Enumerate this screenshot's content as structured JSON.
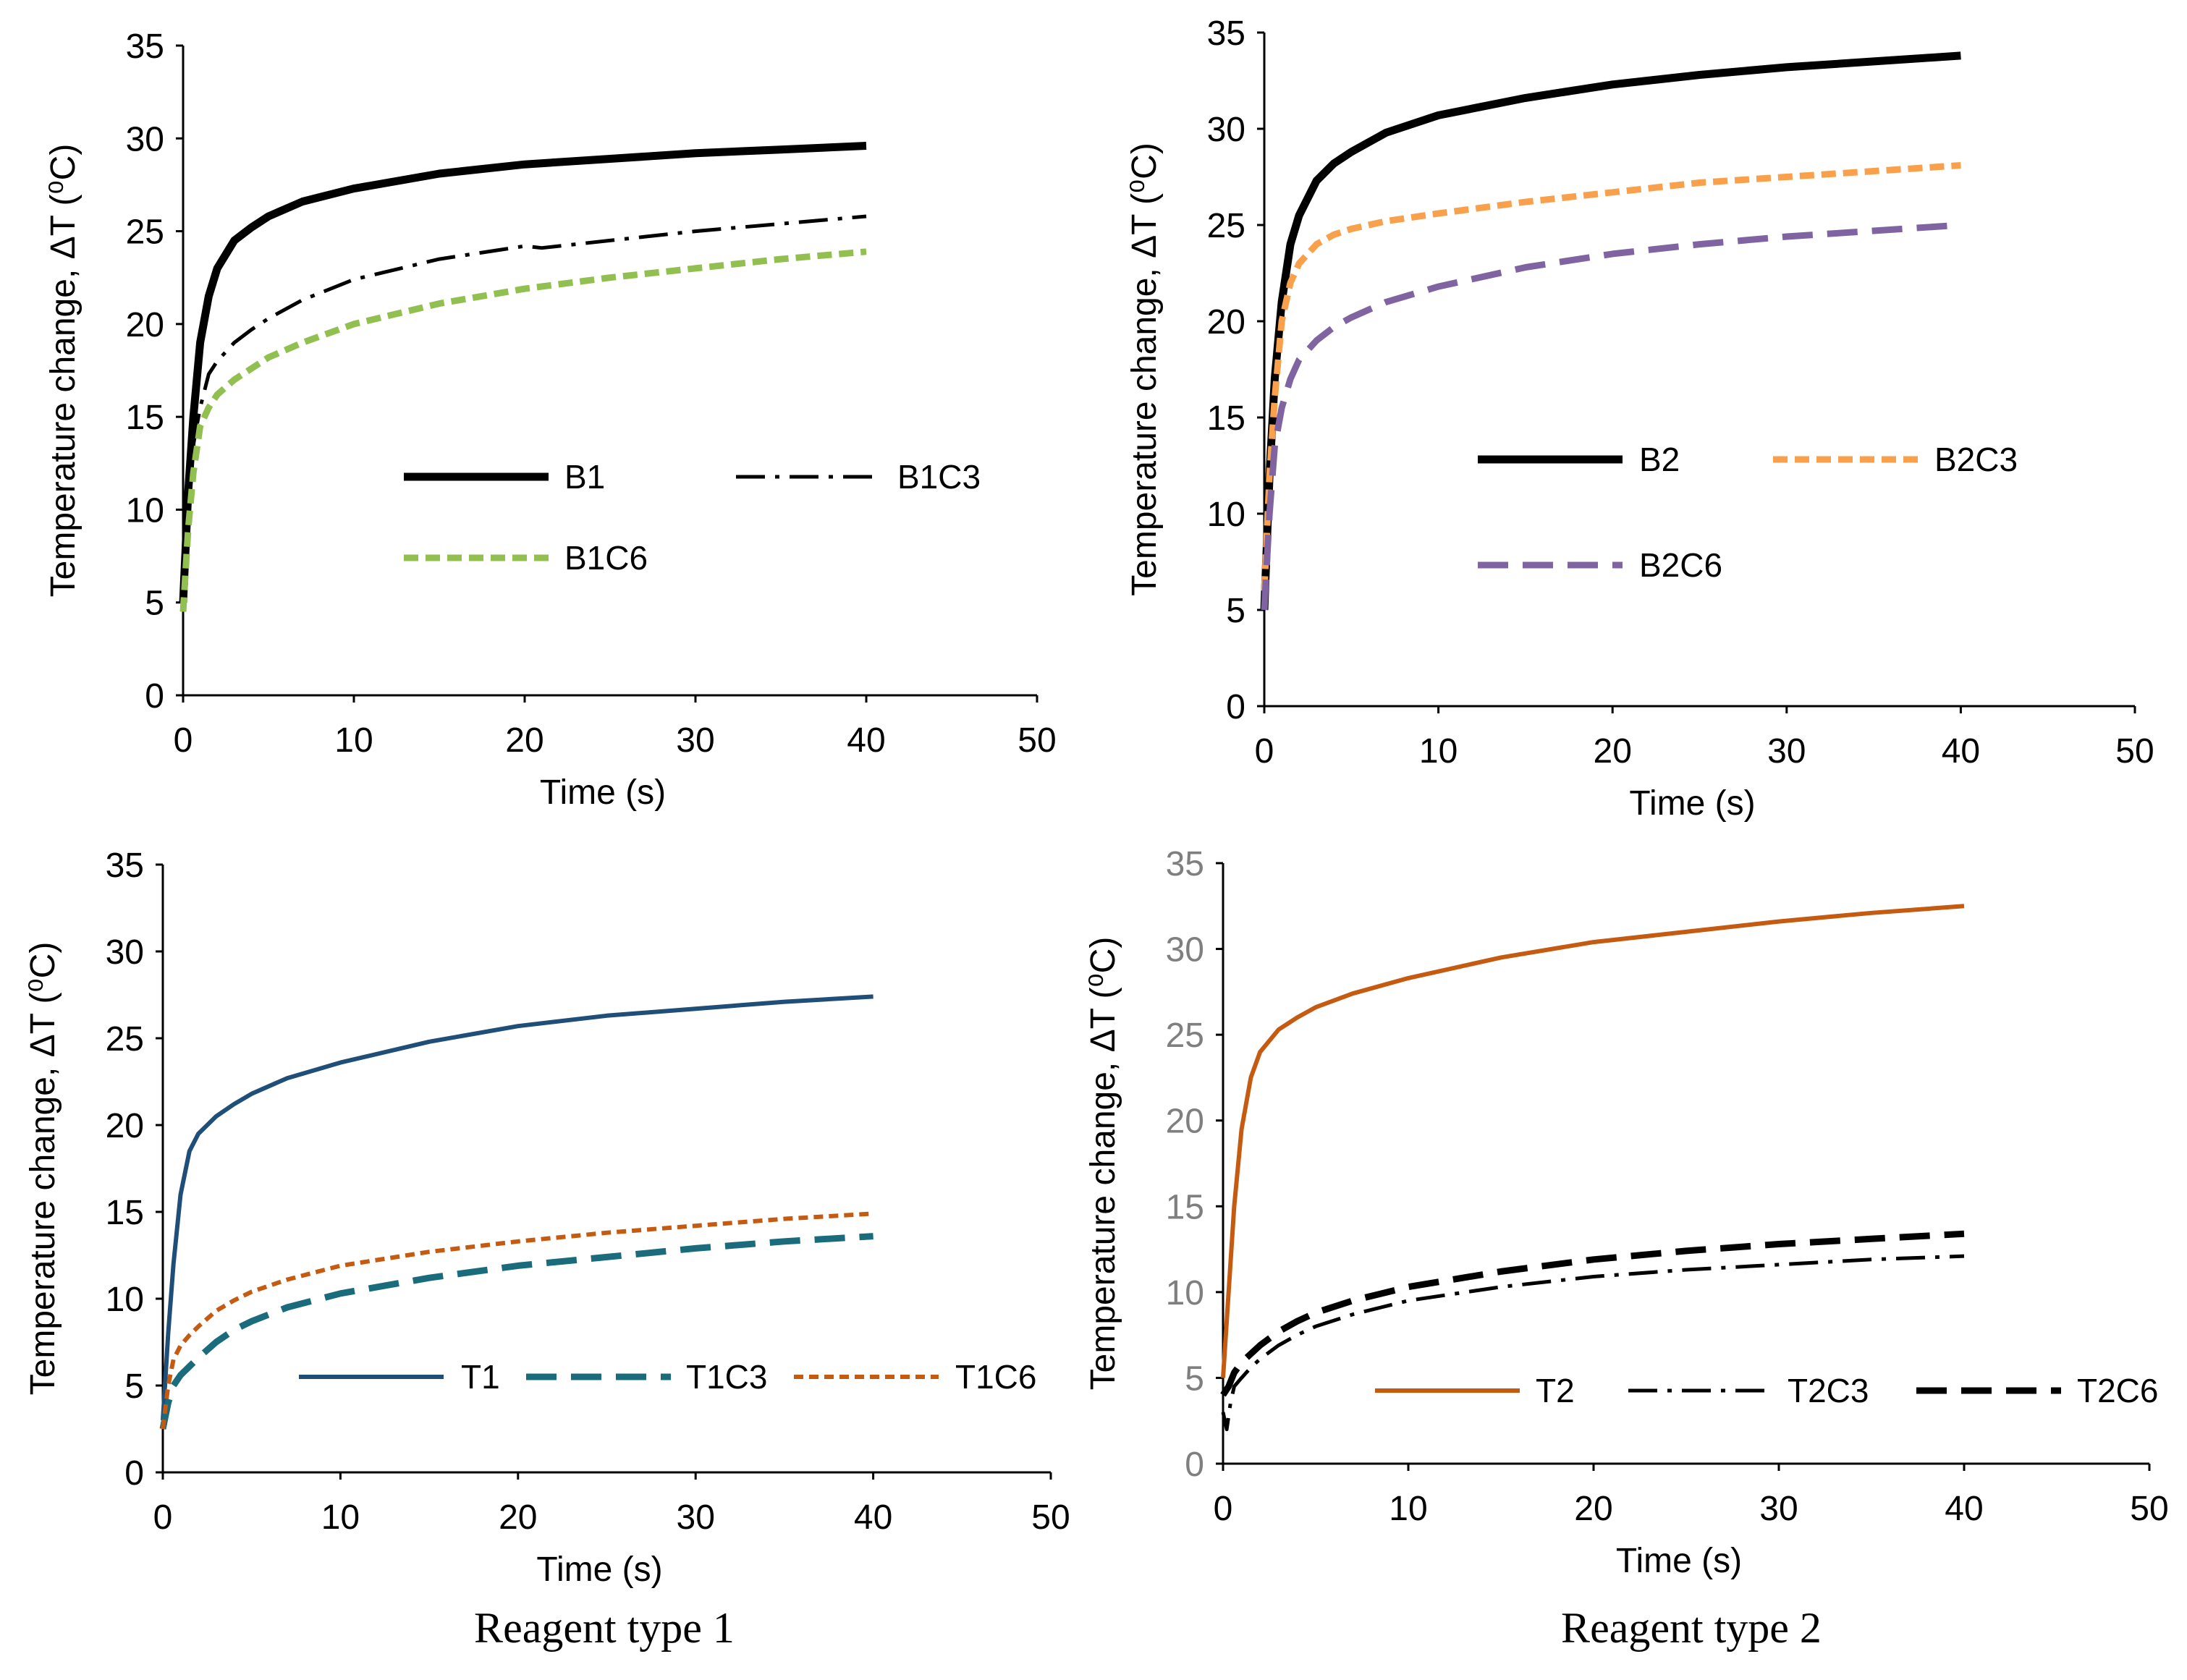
{
  "captions": [
    "Reagent type 1",
    "Reagent type 2"
  ],
  "chart_data": [
    {
      "type": "line",
      "id": "B1",
      "xlabel": "Time (s)",
      "ylabel": "Temperature change, ΔT",
      "ylabel_unit": "(⁰C)",
      "xlim": [
        0,
        50
      ],
      "ylim": [
        0,
        35
      ],
      "xticks": [
        0,
        10,
        20,
        30,
        40,
        50
      ],
      "yticks": [
        0,
        5,
        10,
        15,
        20,
        25,
        30,
        35
      ],
      "legend_position": "middle-right",
      "series": [
        {
          "name": "B1",
          "color": "#000000",
          "style": "solid-thick",
          "x": [
            0,
            0.3,
            0.6,
            1,
            1.5,
            2,
            3,
            4,
            5,
            7,
            10,
            15,
            20,
            25,
            30,
            35,
            40
          ],
          "y": [
            5,
            11,
            15,
            19,
            21.5,
            23,
            24.5,
            25.2,
            25.8,
            26.6,
            27.3,
            28.1,
            28.6,
            28.9,
            29.2,
            29.4,
            29.6
          ]
        },
        {
          "name": "B1C3",
          "color": "#000000",
          "style": "dash-dot",
          "x": [
            0,
            0.3,
            0.6,
            1,
            1.5,
            2,
            3,
            4,
            5,
            7,
            10,
            15,
            20,
            21,
            25,
            30,
            35,
            40
          ],
          "y": [
            5,
            10,
            13.5,
            15.5,
            17.3,
            18,
            19,
            19.7,
            20.3,
            21.3,
            22.4,
            23.5,
            24.2,
            24.1,
            24.5,
            25,
            25.4,
            25.8
          ]
        },
        {
          "name": "B1C6",
          "color": "#92c050",
          "style": "dash-small",
          "x": [
            0,
            0.3,
            0.6,
            1,
            1.5,
            2,
            3,
            4,
            5,
            7,
            10,
            15,
            20,
            25,
            30,
            35,
            40
          ],
          "y": [
            4.5,
            9,
            12,
            14.5,
            15.5,
            16.2,
            17,
            17.6,
            18.2,
            19,
            20,
            21.1,
            21.9,
            22.5,
            23,
            23.5,
            23.9
          ]
        }
      ]
    },
    {
      "type": "line",
      "id": "B2",
      "xlabel": "Time (s)",
      "ylabel": "Temperature change, ΔT",
      "ylabel_unit": "(⁰C)",
      "xlim": [
        0,
        50
      ],
      "ylim": [
        0,
        35
      ],
      "xticks": [
        0,
        10,
        20,
        30,
        40,
        50
      ],
      "yticks": [
        0,
        5,
        10,
        15,
        20,
        25,
        30,
        35
      ],
      "legend_position": "middle-right",
      "series": [
        {
          "name": "B2",
          "color": "#000000",
          "style": "solid-thick",
          "x": [
            0,
            0.3,
            0.6,
            1,
            1.5,
            2,
            3,
            4,
            5,
            7,
            10,
            15,
            20,
            25,
            30,
            35,
            40
          ],
          "y": [
            5,
            12,
            17,
            21,
            24,
            25.5,
            27.3,
            28.2,
            28.8,
            29.8,
            30.7,
            31.6,
            32.3,
            32.8,
            33.2,
            33.5,
            33.8
          ]
        },
        {
          "name": "B2C3",
          "color": "#f8a04c",
          "style": "dash-small",
          "x": [
            0,
            0.3,
            0.6,
            1,
            1.5,
            2,
            3,
            4,
            5,
            7,
            10,
            15,
            20,
            25,
            30,
            35,
            40
          ],
          "y": [
            6,
            12,
            16,
            20,
            22,
            23,
            24,
            24.5,
            24.8,
            25.2,
            25.6,
            26.2,
            26.7,
            27.2,
            27.5,
            27.8,
            28.1
          ]
        },
        {
          "name": "B2C6",
          "color": "#8064a2",
          "style": "dash-long",
          "x": [
            0,
            0.3,
            0.6,
            1,
            1.5,
            2,
            3,
            4,
            5,
            7,
            10,
            15,
            20,
            25,
            30,
            35,
            40
          ],
          "y": [
            5,
            10,
            13.5,
            15.5,
            17,
            18,
            19,
            19.7,
            20.2,
            21,
            21.8,
            22.8,
            23.5,
            24,
            24.4,
            24.7,
            25
          ]
        }
      ]
    },
    {
      "type": "line",
      "id": "T1",
      "xlabel": "Time (s)",
      "ylabel": "Temperature change, ΔT",
      "ylabel_unit": "(⁰C)",
      "xlim": [
        0,
        50
      ],
      "ylim": [
        0,
        35
      ],
      "xticks": [
        0,
        10,
        20,
        30,
        40,
        50
      ],
      "yticks": [
        0,
        5,
        10,
        15,
        20,
        25,
        30,
        35
      ],
      "legend_position": "bottom",
      "series": [
        {
          "name": "T1",
          "color": "#1f4e79",
          "style": "solid-thin",
          "x": [
            0,
            0.3,
            0.6,
            1,
            1.5,
            2,
            3,
            4,
            5,
            7,
            10,
            15,
            20,
            25,
            30,
            35,
            40
          ],
          "y": [
            3,
            8,
            12,
            16,
            18.5,
            19.5,
            20.5,
            21.2,
            21.8,
            22.7,
            23.6,
            24.8,
            25.7,
            26.3,
            26.7,
            27.1,
            27.4
          ]
        },
        {
          "name": "T1C3",
          "color": "#1a6b7c",
          "style": "dash-long",
          "x": [
            0,
            0.3,
            0.6,
            1,
            1.5,
            2,
            3,
            4,
            5,
            7,
            10,
            15,
            20,
            25,
            30,
            35,
            40
          ],
          "y": [
            2.5,
            4,
            5,
            5.6,
            6.1,
            6.6,
            7.5,
            8.2,
            8.7,
            9.5,
            10.3,
            11.2,
            11.9,
            12.4,
            12.9,
            13.3,
            13.6
          ]
        },
        {
          "name": "T1C6",
          "color": "#c55a11",
          "style": "dot-dash-small",
          "x": [
            0,
            0.3,
            0.6,
            1,
            1.5,
            2,
            3,
            4,
            5,
            7,
            10,
            15,
            20,
            25,
            30,
            35,
            40
          ],
          "y": [
            2.5,
            5,
            6.5,
            7.3,
            7.9,
            8.4,
            9.3,
            9.9,
            10.4,
            11.1,
            11.9,
            12.7,
            13.3,
            13.8,
            14.2,
            14.6,
            14.9
          ]
        }
      ]
    },
    {
      "type": "line",
      "id": "T2",
      "xlabel": "Time (s)",
      "ylabel": "Temperature change, ΔT",
      "ylabel_unit": "(⁰C)",
      "xlim": [
        0,
        50
      ],
      "ylim": [
        0,
        35
      ],
      "xticks": [
        0,
        10,
        20,
        30,
        40,
        50
      ],
      "yticks": [
        0,
        5,
        10,
        15,
        20,
        25,
        30,
        35
      ],
      "legend_position": "bottom",
      "series": [
        {
          "name": "T2",
          "color": "#c55a11",
          "style": "solid-thin",
          "x": [
            0,
            0.3,
            0.6,
            1,
            1.5,
            2,
            3,
            4,
            5,
            7,
            10,
            15,
            20,
            25,
            30,
            35,
            40
          ],
          "y": [
            5,
            10,
            15,
            19.5,
            22.5,
            24,
            25.3,
            26,
            26.6,
            27.4,
            28.3,
            29.5,
            30.4,
            31,
            31.6,
            32.1,
            32.5
          ]
        },
        {
          "name": "T2C3",
          "color": "#000000",
          "style": "dash-dot",
          "x": [
            0,
            0.2,
            0.4,
            0.6,
            1,
            1.5,
            2,
            3,
            4,
            5,
            7,
            10,
            15,
            20,
            25,
            30,
            35,
            40
          ],
          "y": [
            3,
            2,
            3.5,
            4.5,
            5,
            5.6,
            6.1,
            6.9,
            7.5,
            8,
            8.7,
            9.5,
            10.3,
            10.9,
            11.3,
            11.6,
            11.9,
            12.1
          ]
        },
        {
          "name": "T2C6",
          "color": "#000000",
          "style": "dash-long",
          "x": [
            0,
            0.3,
            0.6,
            1,
            1.5,
            2,
            3,
            4,
            5,
            7,
            10,
            15,
            20,
            25,
            30,
            35,
            40
          ],
          "y": [
            4,
            4.5,
            5.3,
            5.9,
            6.4,
            6.9,
            7.7,
            8.3,
            8.8,
            9.5,
            10.3,
            11.2,
            11.9,
            12.4,
            12.8,
            13.1,
            13.4
          ]
        }
      ]
    }
  ]
}
